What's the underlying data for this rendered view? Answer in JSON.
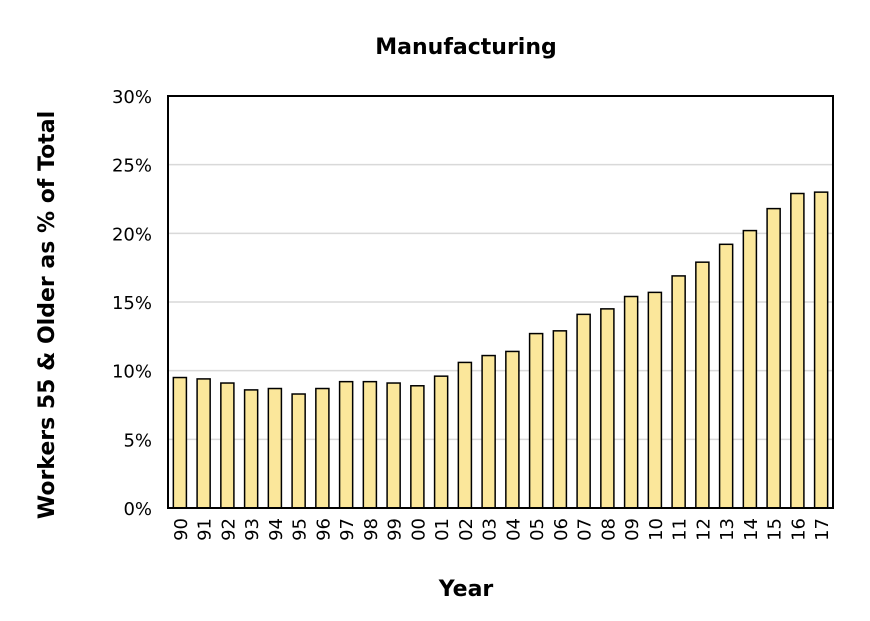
{
  "chart_data": {
    "type": "bar",
    "title": "Manufacturing",
    "xlabel": "Year",
    "ylabel": "Workers 55 & Older as % of Total",
    "categories": [
      "90",
      "91",
      "92",
      "93",
      "94",
      "95",
      "96",
      "97",
      "98",
      "99",
      "00",
      "01",
      "02",
      "03",
      "04",
      "05",
      "06",
      "07",
      "08",
      "09",
      "10",
      "11",
      "12",
      "13",
      "14",
      "15",
      "16",
      "17"
    ],
    "values": [
      9.5,
      9.4,
      9.1,
      8.6,
      8.7,
      8.3,
      8.7,
      9.2,
      9.2,
      9.1,
      8.9,
      9.6,
      10.6,
      11.1,
      11.4,
      12.7,
      12.9,
      14.1,
      14.5,
      15.4,
      15.7,
      16.9,
      17.9,
      19.2,
      20.2,
      21.8,
      22.9,
      23.0
    ],
    "ylim": [
      0,
      30
    ],
    "yticks": [
      0,
      5,
      10,
      15,
      20,
      25,
      30
    ],
    "ytick_labels": [
      "0%",
      "5%",
      "10%",
      "15%",
      "20%",
      "25%",
      "30%"
    ],
    "grid": true,
    "legend": false,
    "colors": {
      "bar_fill": "#fbe79b",
      "bar_edge": "#000000",
      "gridline": "#d9d9d9"
    }
  }
}
